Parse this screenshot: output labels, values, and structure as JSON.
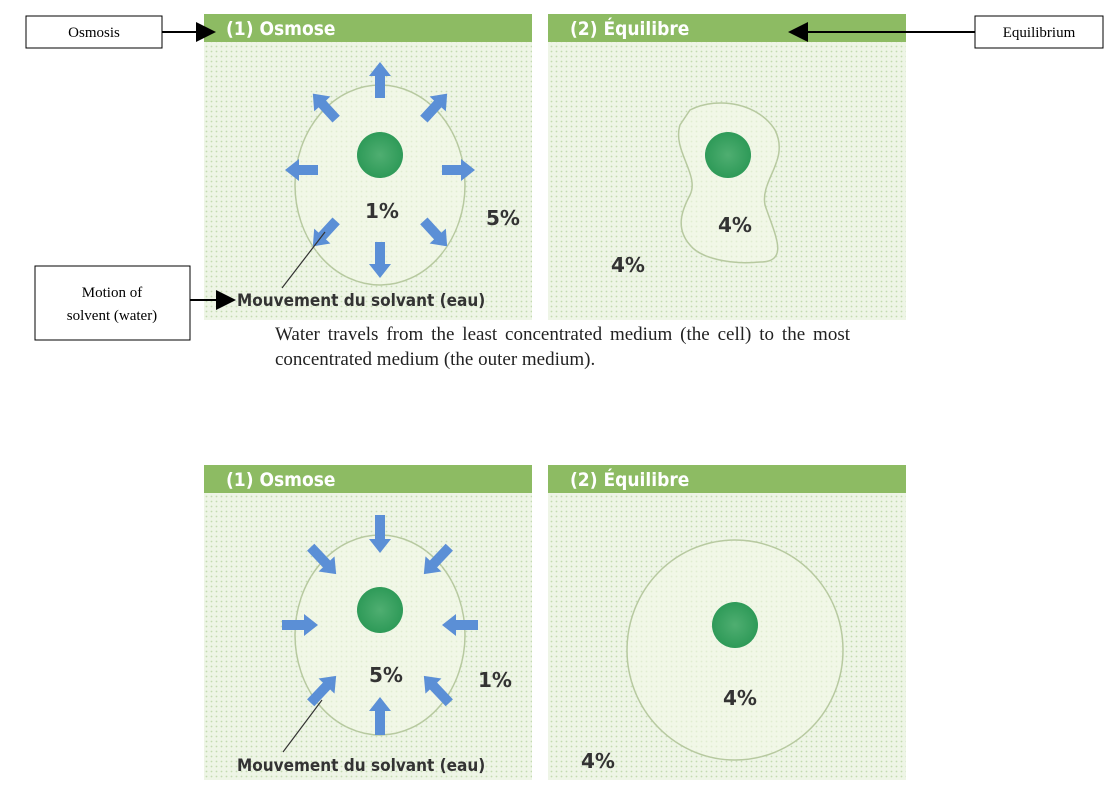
{
  "annotations": {
    "osmosis": "Osmosis",
    "equilibrium": "Equilibrium",
    "motion": [
      "Motion of",
      "solvent (water)"
    ]
  },
  "caption": "Water travels from the least concentrated medium (the cell) to the most concentrated medium (the outer medium).",
  "top": {
    "left": {
      "header": "(1) Osmose",
      "inside": "1%",
      "outside": "5%",
      "label": "Mouvement du solvant (eau)"
    },
    "right": {
      "header": "(2) Équilibre",
      "inside": "4%",
      "outside": "4%"
    }
  },
  "bottom": {
    "left": {
      "header": "(1) Osmose",
      "inside": "5%",
      "outside": "1%",
      "label": "Mouvement du solvant (eau)"
    },
    "right": {
      "header": "(2) Équilibre",
      "inside": "4%",
      "outside": "4%"
    }
  }
}
